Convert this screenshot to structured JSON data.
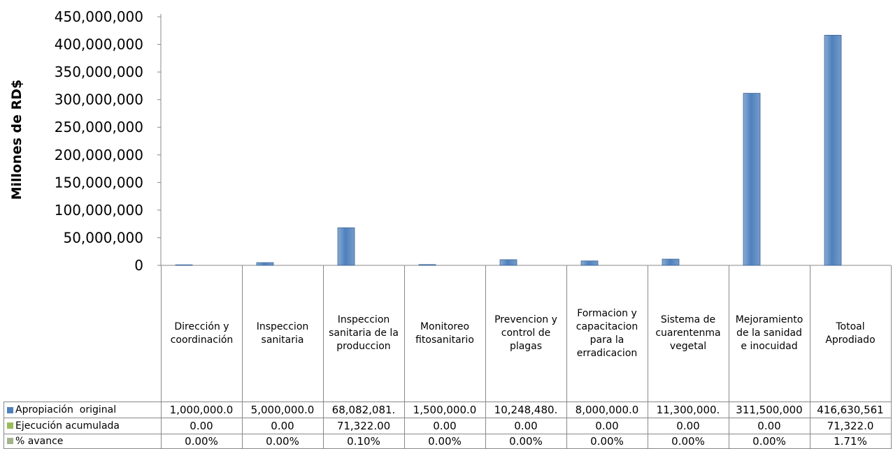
{
  "chart_data": {
    "type": "bar",
    "y_label": "Millones de RD$",
    "categories": [
      "Dirección y coordinación",
      "Inspeccion sanitaria",
      "Inspeccion sanitaria de la produccion",
      "Monitoreo fitosanitario",
      "Prevencion y control de plagas",
      "Formacion y capacitacion para la erradicacion",
      "Sistema de cuarentenma vegetal",
      "Mejoramiento de la sanidad e inocuidad",
      "Totoal Aprodiado"
    ],
    "series": [
      {
        "name": "Apropiación  original",
        "color": "#4f81bd",
        "values": [
          1000000,
          5000000,
          68082081,
          1500000,
          10248480,
          8000000,
          11300000,
          311500000,
          416630561
        ],
        "value_labels": [
          "1,000,000.0",
          "5,000,000.0",
          "68,082,081.",
          "1,500,000.0",
          "10,248,480.",
          "8,000,000.0",
          "11,300,000.",
          "311,500,000",
          "416,630,561"
        ]
      },
      {
        "name": "Ejecución acumulada",
        "color": "#9bbb59",
        "values": [
          0,
          0,
          71322,
          0,
          0,
          0,
          0,
          0,
          71322
        ],
        "value_labels": [
          "0.00",
          "0.00",
          "71,322.00",
          "0.00",
          "0.00",
          "0.00",
          "0.00",
          "0.00",
          "71,322.0"
        ]
      },
      {
        "name": "% avance",
        "color": "#a3b38c",
        "values": [
          0,
          0,
          0.1,
          0,
          0,
          0,
          0,
          0,
          1.71
        ],
        "value_labels": [
          "0.00%",
          "0.00%",
          "0.10%",
          "0.00%",
          "0.00%",
          "0.00%",
          "0.00%",
          "0.00%",
          "1.71%"
        ]
      }
    ],
    "ylim": [
      0,
      450000000
    ],
    "yticks": [
      0,
      {
        "value": 50000000,
        "label": "50,000,000"
      },
      {
        "value": 100000000,
        "label": "100,000,000"
      },
      {
        "value": 150000000,
        "label": "150,000,000"
      },
      {
        "value": 200000000,
        "label": "200,000,000"
      },
      {
        "value": 250000000,
        "label": "250,000,000"
      },
      {
        "value": 300000000,
        "label": "300,000,000"
      },
      {
        "value": 350000000,
        "label": "350,000,000"
      },
      {
        "value": 400000000,
        "label": "400,000,000"
      },
      {
        "value": 450000000,
        "label": "450,000,000"
      }
    ],
    "data_table": true
  }
}
